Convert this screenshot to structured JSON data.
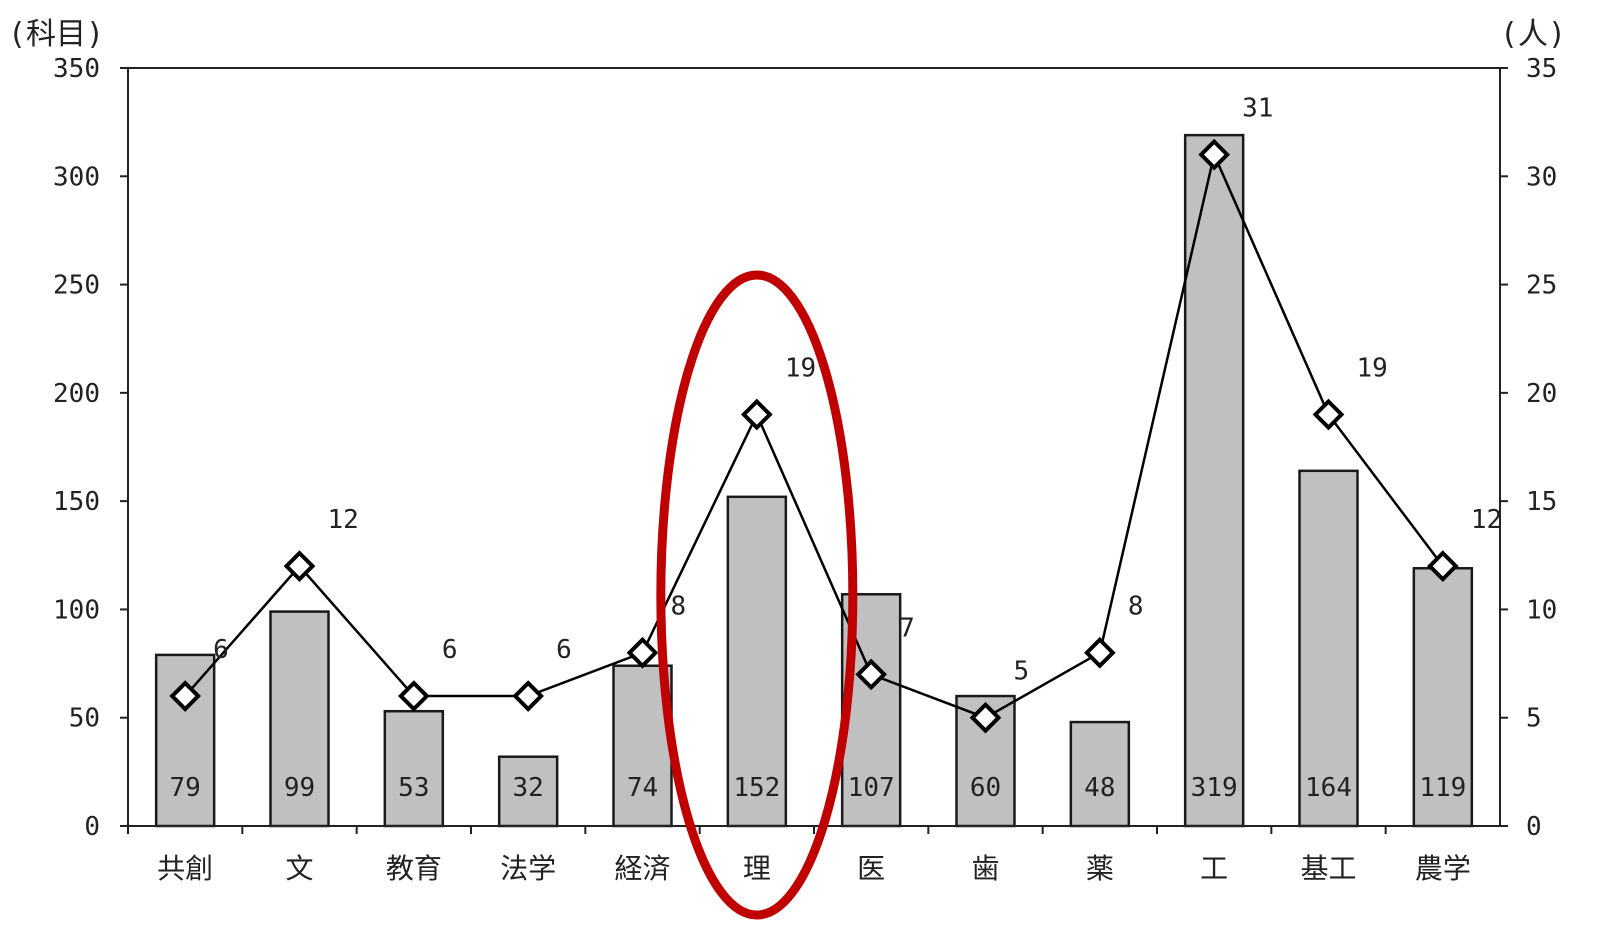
{
  "chart_data": {
    "type": "bar",
    "title": "",
    "y_unit_left": "(科目)",
    "y_unit_right": "(人)",
    "categories": [
      "共創",
      "文",
      "教育",
      "法学",
      "経済",
      "理",
      "医",
      "歯",
      "薬",
      "工",
      "基工",
      "農学"
    ],
    "bar_values": [
      79,
      99,
      53,
      32,
      74,
      152,
      107,
      60,
      48,
      319,
      164,
      119
    ],
    "line_values": [
      6,
      12,
      6,
      6,
      8,
      19,
      7,
      5,
      8,
      31,
      19,
      12
    ],
    "ylim_left": [
      0,
      350
    ],
    "ylim_right": [
      0,
      35
    ],
    "y_ticks_left": [
      "0",
      "50",
      "100",
      "150",
      "200",
      "250",
      "300",
      "350"
    ],
    "y_ticks_right": [
      "0",
      "5",
      "10",
      "15",
      "20",
      "25",
      "30",
      "35"
    ],
    "grid": false,
    "legend": "none",
    "colors": {
      "bar_fill": "#c0c0c0",
      "bar_stroke": "#1a1a1a",
      "line": "#000000",
      "marker_fill": "#ffffff",
      "highlight": "#c00000"
    },
    "highlight_category": "理"
  }
}
